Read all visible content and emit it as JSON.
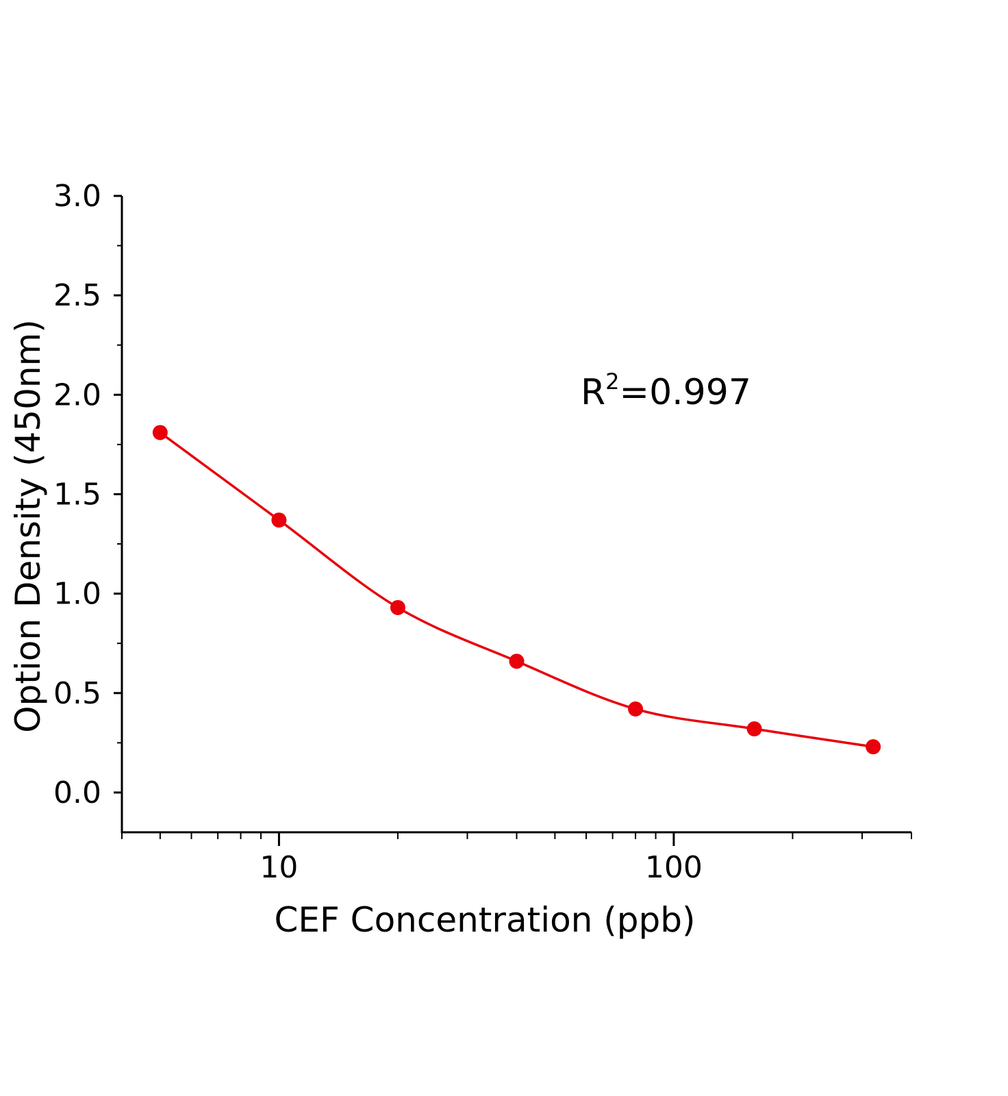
{
  "chart_data": {
    "type": "scatter",
    "xlabel": "CEF  Concentration  (ppb)",
    "ylabel": "Option Density  (450nm)",
    "x_scale": "log",
    "xlim": [
      4,
      400
    ],
    "ylim": [
      -0.2,
      3.0
    ],
    "x_ticks": [
      10,
      100
    ],
    "x_tick_labels": [
      "10",
      "100"
    ],
    "y_ticks": [
      0.0,
      0.5,
      1.0,
      1.5,
      2.0,
      2.5,
      3.0
    ],
    "y_tick_labels": [
      "0.0",
      "0.5",
      "1.0",
      "1.5",
      "2.0",
      "2.5",
      "3.0"
    ],
    "grid": false,
    "series": [
      {
        "x": [
          5,
          10,
          20,
          40,
          80,
          160,
          320
        ],
        "y": [
          1.81,
          1.37,
          0.93,
          0.66,
          0.42,
          0.32,
          0.23
        ],
        "color": "#e8000b",
        "fit_line": true
      }
    ],
    "annotation": {
      "base": "R",
      "sup": "2",
      "rest": "=0.997"
    }
  }
}
